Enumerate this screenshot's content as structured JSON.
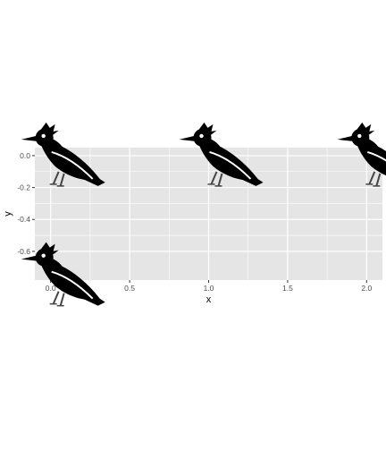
{
  "chart_data": {
    "type": "scatter",
    "title": "",
    "xlabel": "x",
    "ylabel": "y",
    "xlim": [
      -0.1,
      2.1
    ],
    "ylim": [
      -0.78,
      0.05
    ],
    "x_ticks": [
      0.0,
      0.5,
      1.0,
      1.5,
      2.0
    ],
    "x_tick_labels": [
      "0.0",
      "0.5",
      "1.0",
      "1.5",
      "2.0"
    ],
    "y_ticks": [
      0.0,
      -0.2,
      -0.4,
      -0.6
    ],
    "y_tick_labels": [
      "0.0",
      "-0.2",
      "-0.4",
      "-0.6"
    ],
    "grid": true,
    "panel_color": "#e5e5e5",
    "grid_color": "#ffffff",
    "point_icon": "woodpecker-icon",
    "points": [
      {
        "x": 0.0,
        "y": 0.0
      },
      {
        "x": 1.0,
        "y": 0.0
      },
      {
        "x": 2.0,
        "y": 0.0
      },
      {
        "x": 0.0,
        "y": -0.75
      }
    ]
  }
}
